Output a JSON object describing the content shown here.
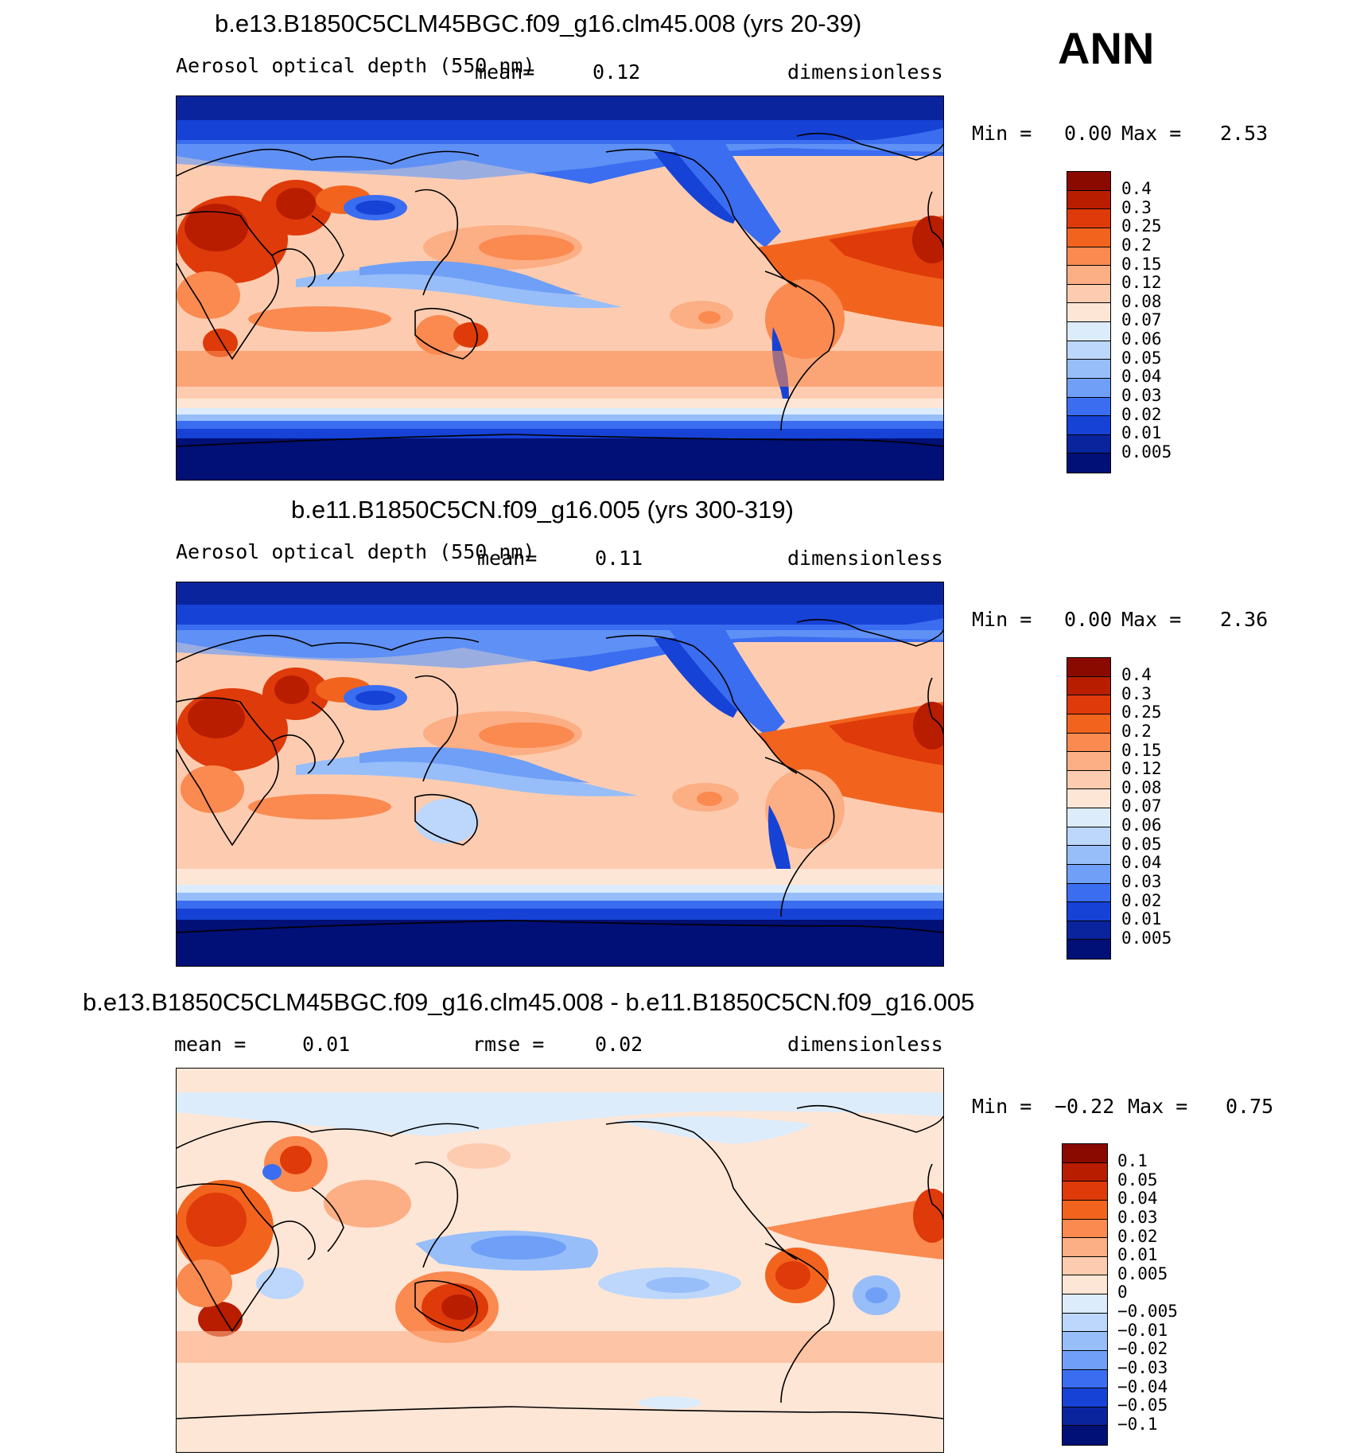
{
  "ann_label": "ANN",
  "panels": [
    {
      "title": "b.e13.B1850C5CLM45BGC.f09_g16.clm45.008 (yrs 20-39)",
      "variable": "Aerosol optical depth (550 nm)",
      "mean_label": "mean=",
      "mean_value": "0.12",
      "units": "dimensionless",
      "min_label": "Min =",
      "min_value": "0.00",
      "max_label": "Max =",
      "max_value": "2.53",
      "levels": [
        "0.4",
        "0.3",
        "0.25",
        "0.2",
        "0.15",
        "0.12",
        "0.08",
        "0.07",
        "0.06",
        "0.05",
        "0.04",
        "0.03",
        "0.02",
        "0.01",
        "0.005"
      ],
      "colors": [
        "#8b0a00",
        "#b81d00",
        "#df3a0a",
        "#f2641e",
        "#fa8a50",
        "#fcae84",
        "#fdccb0",
        "#fee6d6",
        "#dcecfb",
        "#bcd7fb",
        "#97bef9",
        "#6f9ff6",
        "#3b6df0",
        "#1642d6",
        "#0a249e",
        "#001077"
      ]
    },
    {
      "title": "b.e11.B1850C5CN.f09_g16.005 (yrs 300-319)",
      "variable": "Aerosol optical depth (550 nm)",
      "mean_label": "mean=",
      "mean_value": "0.11",
      "units": "dimensionless",
      "min_label": "Min =",
      "min_value": "0.00",
      "max_label": "Max =",
      "max_value": "2.36",
      "levels": [
        "0.4",
        "0.3",
        "0.25",
        "0.2",
        "0.15",
        "0.12",
        "0.08",
        "0.07",
        "0.06",
        "0.05",
        "0.04",
        "0.03",
        "0.02",
        "0.01",
        "0.005"
      ],
      "colors": [
        "#8b0a00",
        "#b81d00",
        "#df3a0a",
        "#f2641e",
        "#fa8a50",
        "#fcae84",
        "#fdccb0",
        "#fee6d6",
        "#dcecfb",
        "#bcd7fb",
        "#97bef9",
        "#6f9ff6",
        "#3b6df0",
        "#1642d6",
        "#0a249e",
        "#001077"
      ]
    },
    {
      "title": "b.e13.B1850C5CLM45BGC.f09_g16.clm45.008 - b.e11.B1850C5CN.f09_g16.005",
      "mean_label": "mean =",
      "mean_value": "0.01",
      "rmse_label": "rmse =",
      "rmse_value": "0.02",
      "units": "dimensionless",
      "min_label": "Min =",
      "min_value": "−0.22",
      "max_label": "Max =",
      "max_value": "0.75",
      "levels": [
        "0.1",
        "0.05",
        "0.04",
        "0.03",
        "0.02",
        "0.01",
        "0.005",
        "0",
        "−0.005",
        "−0.01",
        "−0.02",
        "−0.03",
        "−0.04",
        "−0.05",
        "−0.1"
      ],
      "colors": [
        "#8b0a00",
        "#b81d00",
        "#df3a0a",
        "#f2641e",
        "#fa8a50",
        "#fcae84",
        "#fdccb0",
        "#fee6d6",
        "#dcecfb",
        "#bcd7fb",
        "#97bef9",
        "#6f9ff6",
        "#3b6df0",
        "#1642d6",
        "#0a249e",
        "#001077"
      ]
    }
  ]
}
